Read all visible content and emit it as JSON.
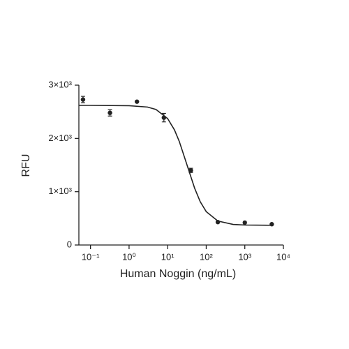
{
  "chart_data": {
    "type": "scatter",
    "x_label": "Human Noggin (ng/mL)",
    "y_label": "RFU",
    "x_scale": "log",
    "xlim": [
      0.05,
      10000
    ],
    "xticks": [
      {
        "value": 0.1,
        "label": "10⁻¹"
      },
      {
        "value": 1,
        "label": "10⁰"
      },
      {
        "value": 10,
        "label": "10¹"
      },
      {
        "value": 100,
        "label": "10²"
      },
      {
        "value": 1000,
        "label": "10³"
      },
      {
        "value": 10000,
        "label": "10⁴"
      }
    ],
    "ylim": [
      0,
      3000
    ],
    "yticks": [
      0,
      {
        "value": 1000,
        "label": "1×10³"
      },
      {
        "value": 2000,
        "label": "2×10³"
      },
      {
        "value": 3000,
        "label": "3×10³"
      }
    ],
    "grid": false,
    "points": {
      "color": "#222222",
      "x": [
        0.064,
        0.32,
        1.6,
        8,
        40,
        200,
        1000,
        5000
      ],
      "values": [
        2730,
        2480,
        2690,
        2390,
        1400,
        430,
        420,
        390
      ],
      "errors": [
        60,
        60,
        null,
        80,
        40,
        null,
        null,
        null
      ]
    },
    "fit": {
      "color": "#222222",
      "x": [
        0.05,
        0.1,
        1,
        3,
        5,
        10,
        15,
        20,
        32,
        50,
        70,
        100,
        200,
        500,
        1000,
        5000
      ],
      "values": [
        2620,
        2620,
        2615,
        2589,
        2543,
        2373,
        2161,
        1945,
        1495,
        1067,
        812,
        626,
        450,
        386,
        375,
        370
      ]
    }
  }
}
